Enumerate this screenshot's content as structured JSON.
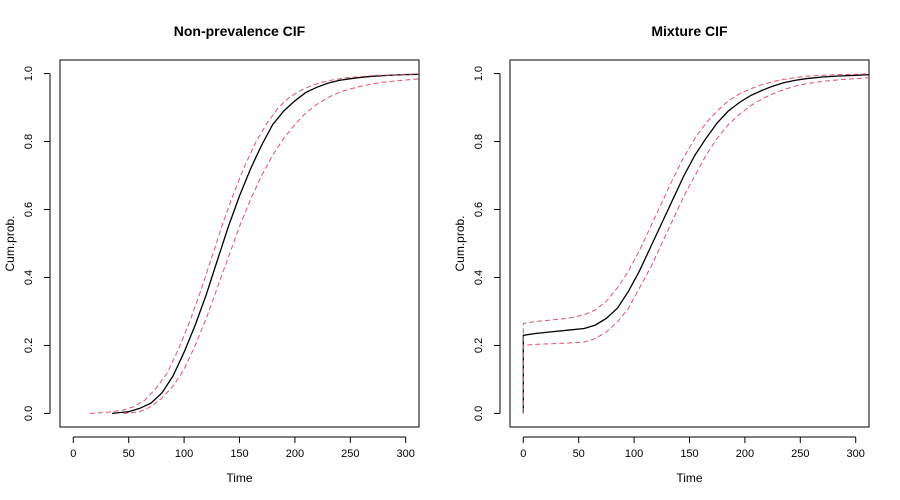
{
  "chart_data": [
    {
      "type": "line",
      "title": "Non-prevalence CIF",
      "xlabel": "Time",
      "ylabel": "Cum.prob.",
      "xlim": [
        -12,
        312
      ],
      "ylim": [
        -0.04,
        1.04
      ],
      "xticks": [
        "0",
        "50",
        "100",
        "150",
        "200",
        "250",
        "300"
      ],
      "yticks": [
        "0.0",
        "0.2",
        "0.4",
        "0.6",
        "0.8",
        "1.0"
      ],
      "series": [
        {
          "role": "estimate",
          "color": "#000000",
          "dash": "solid",
          "x": [
            35,
            50,
            60,
            70,
            80,
            90,
            100,
            110,
            120,
            130,
            140,
            150,
            160,
            170,
            180,
            190,
            200,
            210,
            220,
            230,
            240,
            250,
            260,
            270,
            280,
            290,
            300,
            312
          ],
          "y": [
            0.0,
            0.005,
            0.015,
            0.03,
            0.06,
            0.11,
            0.18,
            0.26,
            0.35,
            0.45,
            0.55,
            0.64,
            0.72,
            0.79,
            0.85,
            0.89,
            0.92,
            0.945,
            0.96,
            0.972,
            0.98,
            0.985,
            0.989,
            0.992,
            0.994,
            0.996,
            0.997,
            0.998
          ]
        },
        {
          "role": "upper-ci",
          "color": "#df536b",
          "dash": "dashed",
          "x": [
            15,
            30,
            45,
            55,
            65,
            75,
            85,
            95,
            105,
            115,
            125,
            135,
            145,
            155,
            165,
            175,
            185,
            195,
            205,
            215,
            225,
            235,
            245,
            255,
            265,
            275,
            285,
            300,
            312
          ],
          "y": [
            0.0,
            0.003,
            0.01,
            0.02,
            0.04,
            0.075,
            0.12,
            0.19,
            0.27,
            0.36,
            0.46,
            0.56,
            0.65,
            0.73,
            0.8,
            0.855,
            0.9,
            0.93,
            0.95,
            0.965,
            0.975,
            0.982,
            0.987,
            0.99,
            0.993,
            0.995,
            0.996,
            0.998,
            0.999
          ]
        },
        {
          "role": "lower-ci",
          "color": "#df536b",
          "dash": "dashed",
          "x": [
            45,
            60,
            70,
            80,
            90,
            100,
            110,
            120,
            130,
            140,
            150,
            160,
            170,
            180,
            190,
            200,
            210,
            220,
            230,
            240,
            250,
            260,
            270,
            280,
            290,
            300,
            312
          ],
          "y": [
            0.0,
            0.005,
            0.02,
            0.045,
            0.08,
            0.13,
            0.2,
            0.28,
            0.37,
            0.46,
            0.55,
            0.63,
            0.7,
            0.76,
            0.81,
            0.85,
            0.885,
            0.91,
            0.93,
            0.945,
            0.955,
            0.963,
            0.97,
            0.975,
            0.978,
            0.981,
            0.984
          ]
        }
      ]
    },
    {
      "type": "line",
      "title": "Mixture CIF",
      "xlabel": "Time",
      "ylabel": "Cum.prob.",
      "xlim": [
        -12,
        312
      ],
      "ylim": [
        -0.04,
        1.04
      ],
      "xticks": [
        "0",
        "50",
        "100",
        "150",
        "200",
        "250",
        "300"
      ],
      "yticks": [
        "0.0",
        "0.2",
        "0.4",
        "0.6",
        "0.8",
        "1.0"
      ],
      "series": [
        {
          "role": "estimate",
          "color": "#000000",
          "dash": "solid",
          "x": [
            0,
            0,
            10,
            25,
            40,
            55,
            65,
            75,
            85,
            95,
            105,
            115,
            125,
            135,
            145,
            155,
            165,
            175,
            185,
            195,
            205,
            215,
            225,
            235,
            245,
            255,
            270,
            285,
            300,
            312
          ],
          "y": [
            0.0,
            0.23,
            0.235,
            0.24,
            0.245,
            0.25,
            0.26,
            0.28,
            0.31,
            0.36,
            0.42,
            0.49,
            0.56,
            0.63,
            0.7,
            0.76,
            0.81,
            0.855,
            0.89,
            0.915,
            0.935,
            0.95,
            0.963,
            0.973,
            0.98,
            0.985,
            0.99,
            0.993,
            0.995,
            0.997
          ]
        },
        {
          "role": "upper-ci",
          "color": "#df536b",
          "dash": "dashed",
          "x": [
            0,
            0,
            10,
            25,
            40,
            55,
            65,
            75,
            85,
            95,
            105,
            115,
            125,
            135,
            145,
            155,
            165,
            175,
            185,
            195,
            205,
            215,
            225,
            235,
            245,
            255,
            270,
            285,
            300,
            312
          ],
          "y": [
            0.0,
            0.265,
            0.27,
            0.275,
            0.28,
            0.29,
            0.305,
            0.33,
            0.37,
            0.42,
            0.48,
            0.55,
            0.62,
            0.69,
            0.755,
            0.81,
            0.855,
            0.89,
            0.92,
            0.94,
            0.955,
            0.967,
            0.976,
            0.983,
            0.988,
            0.992,
            0.995,
            0.997,
            0.998,
            0.999
          ]
        },
        {
          "role": "lower-ci",
          "color": "#df536b",
          "dash": "dashed",
          "x": [
            0,
            0,
            10,
            25,
            40,
            55,
            65,
            75,
            85,
            95,
            105,
            115,
            125,
            135,
            145,
            155,
            165,
            175,
            185,
            195,
            205,
            215,
            225,
            235,
            245,
            255,
            270,
            285,
            300,
            312
          ],
          "y": [
            0.0,
            0.2,
            0.203,
            0.205,
            0.207,
            0.21,
            0.22,
            0.24,
            0.27,
            0.31,
            0.37,
            0.43,
            0.5,
            0.57,
            0.64,
            0.7,
            0.76,
            0.81,
            0.85,
            0.88,
            0.905,
            0.925,
            0.94,
            0.953,
            0.963,
            0.97,
            0.977,
            0.982,
            0.985,
            0.988
          ]
        }
      ]
    }
  ]
}
